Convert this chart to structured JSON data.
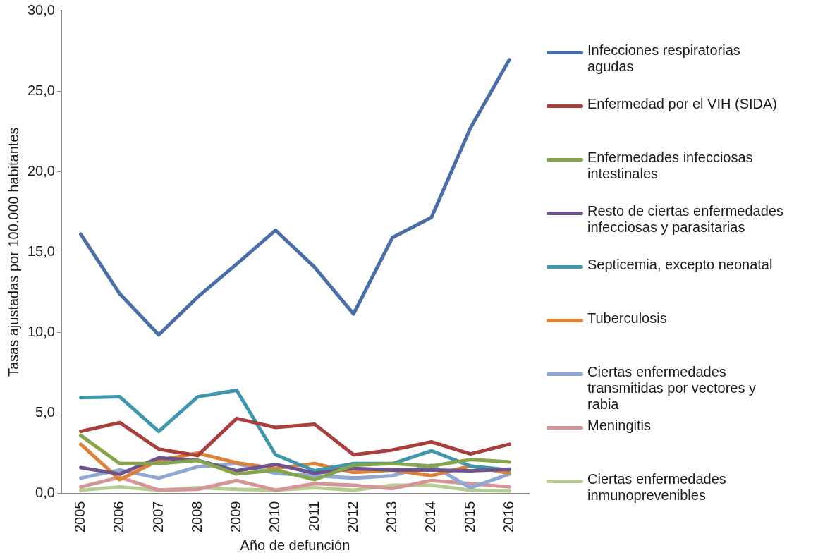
{
  "chart_data": {
    "type": "line",
    "xlabel": "Año de defunción",
    "ylabel": "Tasas ajustadas por 100.000 habitantes",
    "categories": [
      "2005",
      "2006",
      "2007",
      "2008",
      "2009",
      "2010",
      "2011",
      "2012",
      "2013",
      "2014",
      "2015",
      "2016"
    ],
    "ylim": [
      0,
      30
    ],
    "yticks": [
      {
        "value": 0,
        "label": "0,0"
      },
      {
        "value": 5,
        "label": "5,0"
      },
      {
        "value": 10,
        "label": "10,0"
      },
      {
        "value": 15,
        "label": "15,0"
      },
      {
        "value": 20,
        "label": "20,0"
      },
      {
        "value": 25,
        "label": "25,0"
      },
      {
        "value": 30,
        "label": "30,0"
      }
    ],
    "grid": false,
    "legend": "right",
    "marker": "none",
    "line_style": "solid",
    "series": [
      {
        "name": "Infecciones respiratorias agudas",
        "color": "#4a6fa8",
        "values": [
          16.1,
          12.4,
          9.85,
          12.2,
          14.25,
          16.35,
          14.05,
          11.15,
          15.9,
          17.15,
          22.7,
          26.95
        ]
      },
      {
        "name": "Enfermedad por el VIH (SIDA)",
        "color": "#a83f3c",
        "values": [
          3.85,
          4.4,
          2.75,
          2.35,
          4.65,
          4.1,
          4.3,
          2.4,
          2.7,
          3.2,
          2.45,
          3.05
        ]
      },
      {
        "name": "Enfermedades infecciosas intestinales",
        "color": "#86a54a",
        "values": [
          3.6,
          1.85,
          1.85,
          2.05,
          1.2,
          1.45,
          0.85,
          1.75,
          1.85,
          1.7,
          2.1,
          1.95
        ]
      },
      {
        "name": "Resto de ciertas enfermedades infecciosas y parasitarias",
        "color": "#6e548e",
        "values": [
          1.6,
          1.2,
          2.2,
          2.05,
          1.4,
          1.8,
          1.25,
          1.55,
          1.45,
          1.45,
          1.4,
          1.5
        ]
      },
      {
        "name": "Septicemia, excepto neonatal",
        "color": "#3e97ad",
        "values": [
          5.95,
          6.0,
          3.85,
          6.0,
          6.4,
          2.4,
          1.4,
          1.85,
          1.85,
          2.65,
          1.7,
          1.45
        ]
      },
      {
        "name": "Tuberculosis",
        "color": "#df8136",
        "values": [
          3.05,
          0.85,
          2.05,
          2.5,
          1.9,
          1.55,
          1.85,
          1.3,
          1.45,
          1.1,
          1.7,
          1.25
        ]
      },
      {
        "name": "Ciertas enfermedades transmitidas por vectores y rabia",
        "color": "#8ea8d3",
        "values": [
          0.95,
          1.45,
          0.95,
          1.65,
          1.85,
          1.25,
          1.1,
          0.95,
          1.1,
          1.75,
          0.35,
          1.2
        ]
      },
      {
        "name": "Meningitis",
        "color": "#d59496",
        "values": [
          0.4,
          1.0,
          0.2,
          0.25,
          0.8,
          0.2,
          0.6,
          0.5,
          0.3,
          0.8,
          0.6,
          0.4
        ]
      },
      {
        "name": "Ciertas enfermedades inmunoprevenibles",
        "color": "#b5cd93",
        "values": [
          0.2,
          0.4,
          0.2,
          0.35,
          0.25,
          0.2,
          0.35,
          0.2,
          0.5,
          0.5,
          0.2,
          0.15
        ]
      }
    ]
  }
}
